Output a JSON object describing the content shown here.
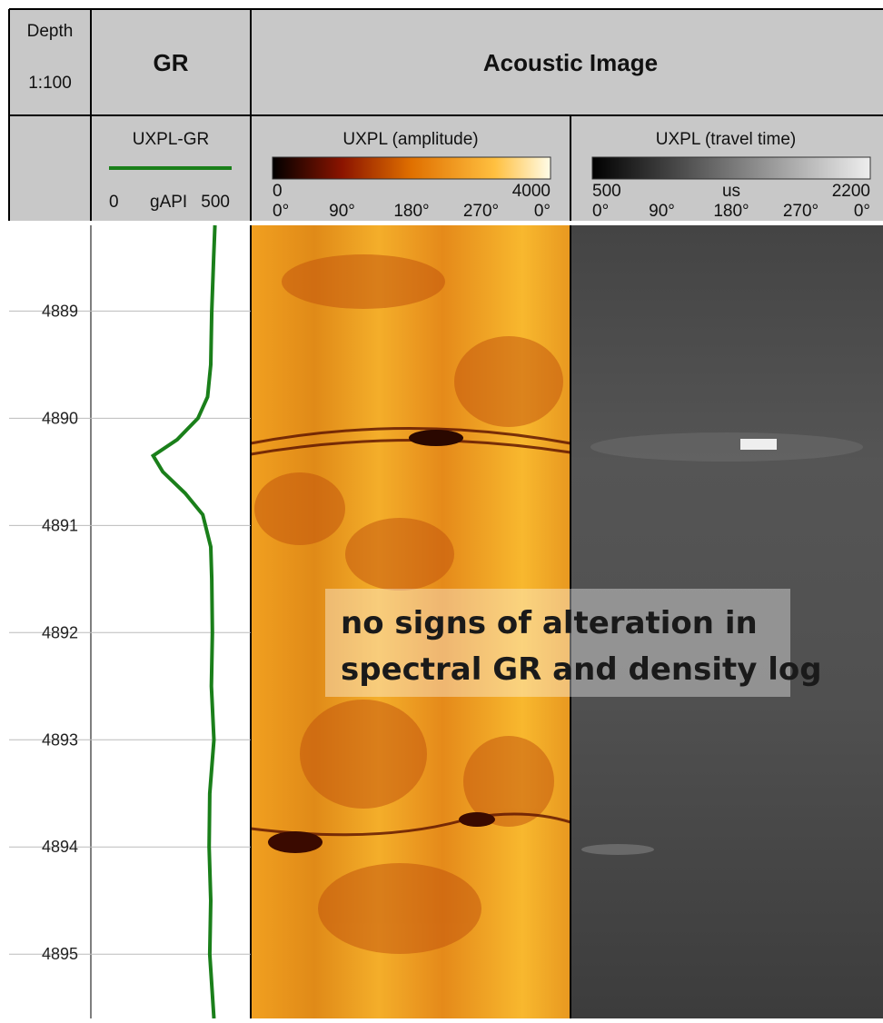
{
  "header": {
    "depth_title": "Depth",
    "depth_scale": "1:100",
    "gr_title": "GR",
    "image_title": "Acoustic Image"
  },
  "amplitude": {
    "name": "UXPL (amplitude)",
    "min": "0",
    "max": "4000",
    "angles": [
      "0°",
      "90°",
      "180°",
      "270°",
      "0°"
    ]
  },
  "travel_time": {
    "name": "UXPL (travel time)",
    "min": "500",
    "unit": "us",
    "max": "2200",
    "angles": [
      "0°",
      "90°",
      "180°",
      "270°",
      "0°"
    ]
  },
  "annotation": [
    "no signs of alteration in",
    "spectral GR and density log"
  ],
  "chart_data": {
    "type": "line",
    "depth": [
      4888.2,
      4888.5,
      4889,
      4889.5,
      4889.8,
      4890,
      4890.2,
      4890.35,
      4890.5,
      4890.7,
      4890.9,
      4891.2,
      4891.5,
      4892,
      4892.5,
      4893,
      4893.5,
      4894,
      4894.5,
      4895,
      4895.6
    ],
    "series": [
      {
        "name": "UXPL-GR",
        "color": "#1a7f1a",
        "values": [
          388,
          384,
          378,
          375,
          365,
          335,
          270,
          195,
          225,
          295,
          350,
          375,
          378,
          380,
          377,
          385,
          372,
          370,
          375,
          372,
          385
        ]
      }
    ],
    "xlim": [
      0,
      500
    ],
    "xlabel": "gAPI",
    "ylim": [
      4888.2,
      4895.6
    ],
    "yticks": [
      4889,
      4890,
      4891,
      4892,
      4893,
      4894,
      4895
    ],
    "grid": true
  }
}
